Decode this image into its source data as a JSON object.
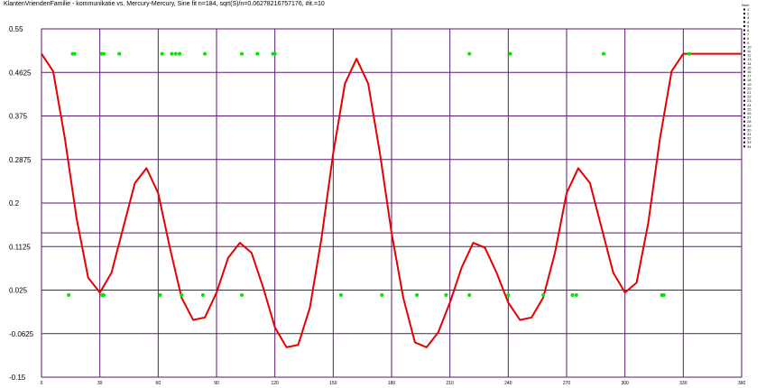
{
  "chart_data": {
    "type": "line",
    "title": "KlantenVriendenFamilie - kommunikatie vs. Mercury-Mercury, Sine fit   n=184, sqrt(S)/n=0.06278216757176, #it.=10",
    "ylabel": "",
    "xlabel": "",
    "ylim": [
      -0.15,
      0.55
    ],
    "xlim": [
      0,
      360
    ],
    "grid": true,
    "y_ticks": [
      "0.55",
      "0.4625",
      "0.375",
      "0.2875",
      "0.2",
      "0.1125",
      "0.025",
      "-0.0625",
      "-0.15"
    ],
    "x_ticks": [
      "0",
      "30",
      "60",
      "90",
      "120",
      "150",
      "180",
      "210",
      "240",
      "270",
      "300",
      "330",
      "360"
    ],
    "extra_hline": 0.14,
    "legend": {
      "title": "Num",
      "placement": "right",
      "entries": [
        "1",
        "2",
        "3",
        "4",
        "5",
        "6",
        "7",
        "8",
        "9",
        "10",
        "11",
        "12",
        "13",
        "14",
        "15",
        "16",
        "17",
        "18",
        "19",
        "20",
        "21",
        "22",
        "23",
        "24",
        "25",
        "26",
        "27",
        "28",
        "29",
        "30",
        "31",
        "32",
        "33",
        "34"
      ]
    },
    "series": [
      {
        "kind": "fit-line",
        "color": "#e60000",
        "x": [
          0,
          6,
          12,
          18,
          24,
          30,
          36,
          42,
          48,
          54,
          60,
          66,
          72,
          78,
          84,
          90,
          96,
          102,
          108,
          114,
          120,
          126,
          132,
          138,
          144,
          150,
          156,
          162,
          168,
          174,
          180,
          186,
          192,
          198,
          204,
          210,
          216,
          222,
          228,
          234,
          240,
          246,
          252,
          258,
          264,
          270,
          276,
          282,
          288,
          294,
          300,
          306,
          312,
          318,
          324,
          330,
          336,
          342,
          348,
          354,
          360
        ],
        "y": [
          0.5,
          0.465,
          0.33,
          0.17,
          0.05,
          0.02,
          0.06,
          0.15,
          0.24,
          0.27,
          0.22,
          0.11,
          0.01,
          -0.035,
          -0.03,
          0.02,
          0.09,
          0.12,
          0.1,
          0.03,
          -0.05,
          -0.09,
          -0.085,
          -0.01,
          0.13,
          0.3,
          0.44,
          0.49,
          0.44,
          0.3,
          0.14,
          0.01,
          -0.08,
          -0.09,
          -0.06,
          0.0,
          0.07,
          0.12,
          0.11,
          0.06,
          0.0,
          -0.035,
          -0.03,
          0.01,
          0.1,
          0.22,
          0.27,
          0.24,
          0.15,
          0.06,
          0.02,
          0.04,
          0.16,
          0.33,
          0.465,
          0.5,
          0.5,
          0.5,
          0.5,
          0.5,
          0.5
        ]
      },
      {
        "kind": "points-high",
        "color": "#00e600",
        "x": [
          16,
          17,
          31,
          32,
          40,
          62,
          67,
          69,
          71,
          84,
          103,
          111,
          119,
          120,
          220,
          241,
          289,
          333
        ],
        "y": [
          0.5,
          0.5,
          0.5,
          0.5,
          0.5,
          0.5,
          0.5,
          0.5,
          0.5,
          0.5,
          0.5,
          0.5,
          0.5,
          0.5,
          0.5,
          0.5,
          0.5,
          0.5
        ]
      },
      {
        "kind": "points-low",
        "color": "#00e600",
        "x": [
          14,
          31,
          32,
          61,
          72,
          83,
          103,
          154,
          175,
          193,
          208,
          220,
          240,
          258,
          273,
          275,
          319,
          320
        ],
        "y": [
          0.015,
          0.015,
          0.015,
          0.015,
          0.015,
          0.015,
          0.015,
          0.015,
          0.015,
          0.015,
          0.015,
          0.015,
          0.015,
          0.015,
          0.015,
          0.015,
          0.015,
          0.015
        ]
      }
    ]
  }
}
